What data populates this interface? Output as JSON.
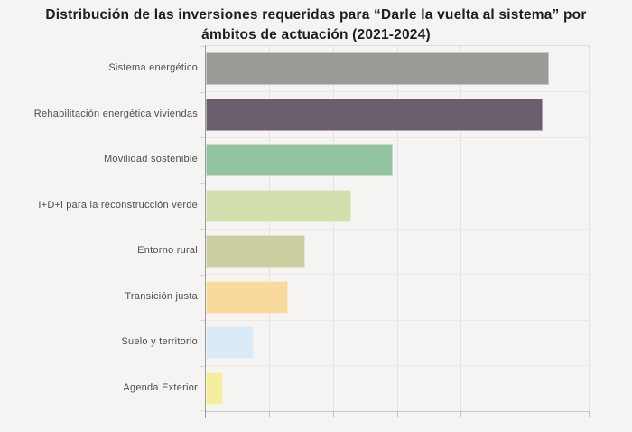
{
  "page": {
    "background": "#f5f4f2",
    "title_color": "#1e1e1e",
    "label_color": "#4e4e4e",
    "grid_color": "#e3e3e1",
    "axis_color": "#9c9c9a",
    "frame_bottom_color": "#c9c9c7"
  },
  "chart_data": {
    "type": "bar",
    "orientation": "horizontal",
    "title": "Distribución de las inversiones requeridas para “Darle la vuelta al sistema” por ámbitos de actuación (2021-2024)",
    "categories": [
      "Sistema energético",
      "Rehabilitación energética viviendas",
      "Movilidad sostenible",
      "I+D+i para la reconstrucción verde",
      "Entorno rural",
      "Transición justa",
      "Suelo y territorio",
      "Agenda Exterior"
    ],
    "values": [
      5.37,
      5.26,
      2.92,
      2.27,
      1.55,
      1.29,
      0.75,
      0.27
    ],
    "bar_colors": [
      "#999b97",
      "#6b5e6d",
      "#94c3a2",
      "#d2e0ad",
      "#cccea0",
      "#f8db9c",
      "#daeaf6",
      "#f5ee9f"
    ],
    "xlabel": "",
    "ylabel": "",
    "xlim": [
      0,
      6
    ],
    "x_gridline_interval": 1,
    "x_tick_labels": [],
    "grid": true,
    "legend_position": "none"
  }
}
